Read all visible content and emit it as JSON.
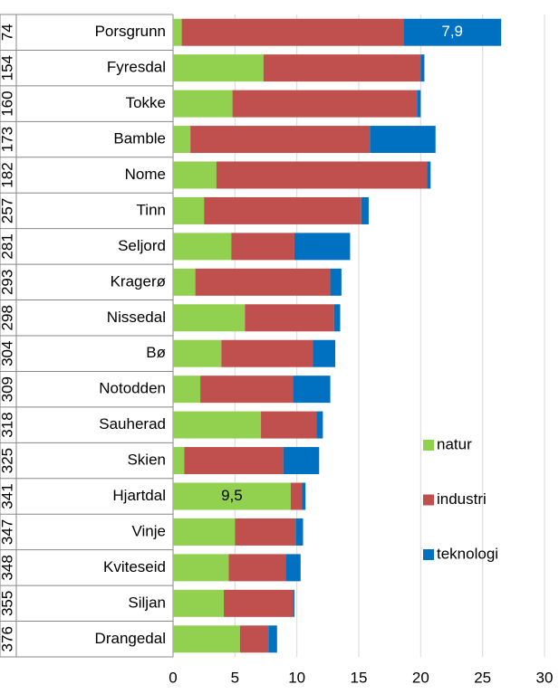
{
  "chart_data": {
    "type": "stacked_barh",
    "groups": [
      "74",
      "154",
      "160",
      "173",
      "182",
      "257",
      "281",
      "293",
      "298",
      "304",
      "309",
      "318",
      "325",
      "341",
      "347",
      "348",
      "355",
      "376"
    ],
    "categories": [
      "Porsgrunn",
      "Fyresdal",
      "Tokke",
      "Bamble",
      "Nome",
      "Tinn",
      "Seljord",
      "Kragerø",
      "Nissedal",
      "Bø",
      "Notodden",
      "Sauherad",
      "Skien",
      "Hjartdal",
      "Vinje",
      "Kviteseid",
      "Siljan",
      "Drangedal"
    ],
    "series": [
      {
        "name": "natur",
        "color": "#92d050",
        "values": [
          0.7,
          7.3,
          4.8,
          1.4,
          3.5,
          2.5,
          4.7,
          1.8,
          5.8,
          3.9,
          2.2,
          7.1,
          0.9,
          9.5,
          5.0,
          4.5,
          4.1,
          5.4
        ],
        "value_labels": [
          null,
          null,
          null,
          null,
          null,
          null,
          null,
          null,
          null,
          null,
          null,
          null,
          null,
          "9,5",
          null,
          null,
          null,
          null
        ]
      },
      {
        "name": "industri",
        "color": "#c0504d",
        "values": [
          17.9,
          12.7,
          14.9,
          14.5,
          17.0,
          12.7,
          5.1,
          10.9,
          7.2,
          7.4,
          7.5,
          4.5,
          8.0,
          0.9,
          4.9,
          4.6,
          5.6,
          2.3
        ]
      },
      {
        "name": "teknologi",
        "color": "#0070c0",
        "values": [
          7.9,
          0.3,
          0.3,
          5.3,
          0.3,
          0.6,
          4.5,
          0.9,
          0.5,
          1.8,
          3.0,
          0.5,
          2.9,
          0.3,
          0.6,
          1.2,
          0.1,
          0.7
        ],
        "value_labels": [
          "7,9",
          null,
          null,
          null,
          null,
          null,
          null,
          null,
          null,
          null,
          null,
          null,
          null,
          null,
          null,
          null,
          null,
          null
        ]
      }
    ],
    "xlim": [
      0,
      30
    ],
    "xticks": [
      0,
      5,
      10,
      15,
      20,
      25,
      30
    ],
    "grid": true,
    "legend": "right"
  }
}
